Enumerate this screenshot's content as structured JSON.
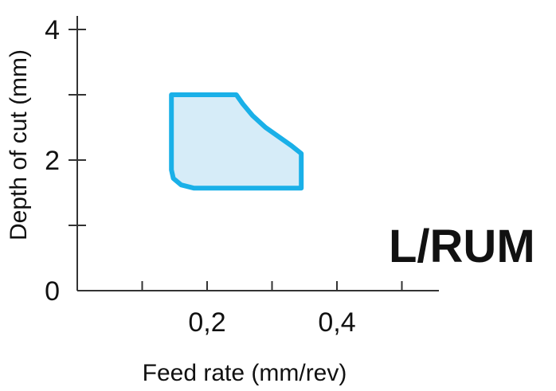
{
  "chart_data": {
    "type": "area",
    "title": "",
    "xlabel": "Feed rate (mm/rev)",
    "ylabel": "Depth of cut (mm)",
    "xlim": [
      0,
      0.56
    ],
    "ylim": [
      0,
      4.1
    ],
    "x_ticks": [
      0.1,
      0.2,
      0.3,
      0.4,
      0.5
    ],
    "x_tick_labels": [
      {
        "value": 0.2,
        "label": "0,2"
      },
      {
        "value": 0.4,
        "label": "0,4"
      }
    ],
    "y_ticks": [
      0,
      1,
      2,
      3,
      4
    ],
    "y_tick_labels": [
      {
        "value": 0,
        "label": "0"
      },
      {
        "value": 2,
        "label": "2"
      },
      {
        "value": 4,
        "label": "4"
      }
    ],
    "grid": false,
    "region": {
      "fill_color": "#d6ecf8",
      "stroke_color": "#1ab0e8",
      "boundary": [
        {
          "x": 0.145,
          "y": 3.0
        },
        {
          "x": 0.245,
          "y": 3.0
        },
        {
          "x": 0.255,
          "y": 2.86
        },
        {
          "x": 0.27,
          "y": 2.68
        },
        {
          "x": 0.29,
          "y": 2.5
        },
        {
          "x": 0.31,
          "y": 2.36
        },
        {
          "x": 0.33,
          "y": 2.22
        },
        {
          "x": 0.345,
          "y": 2.1
        },
        {
          "x": 0.345,
          "y": 1.57
        },
        {
          "x": 0.18,
          "y": 1.57
        },
        {
          "x": 0.16,
          "y": 1.62
        },
        {
          "x": 0.148,
          "y": 1.72
        },
        {
          "x": 0.145,
          "y": 1.85
        }
      ]
    },
    "annotation": "L/RUM"
  }
}
